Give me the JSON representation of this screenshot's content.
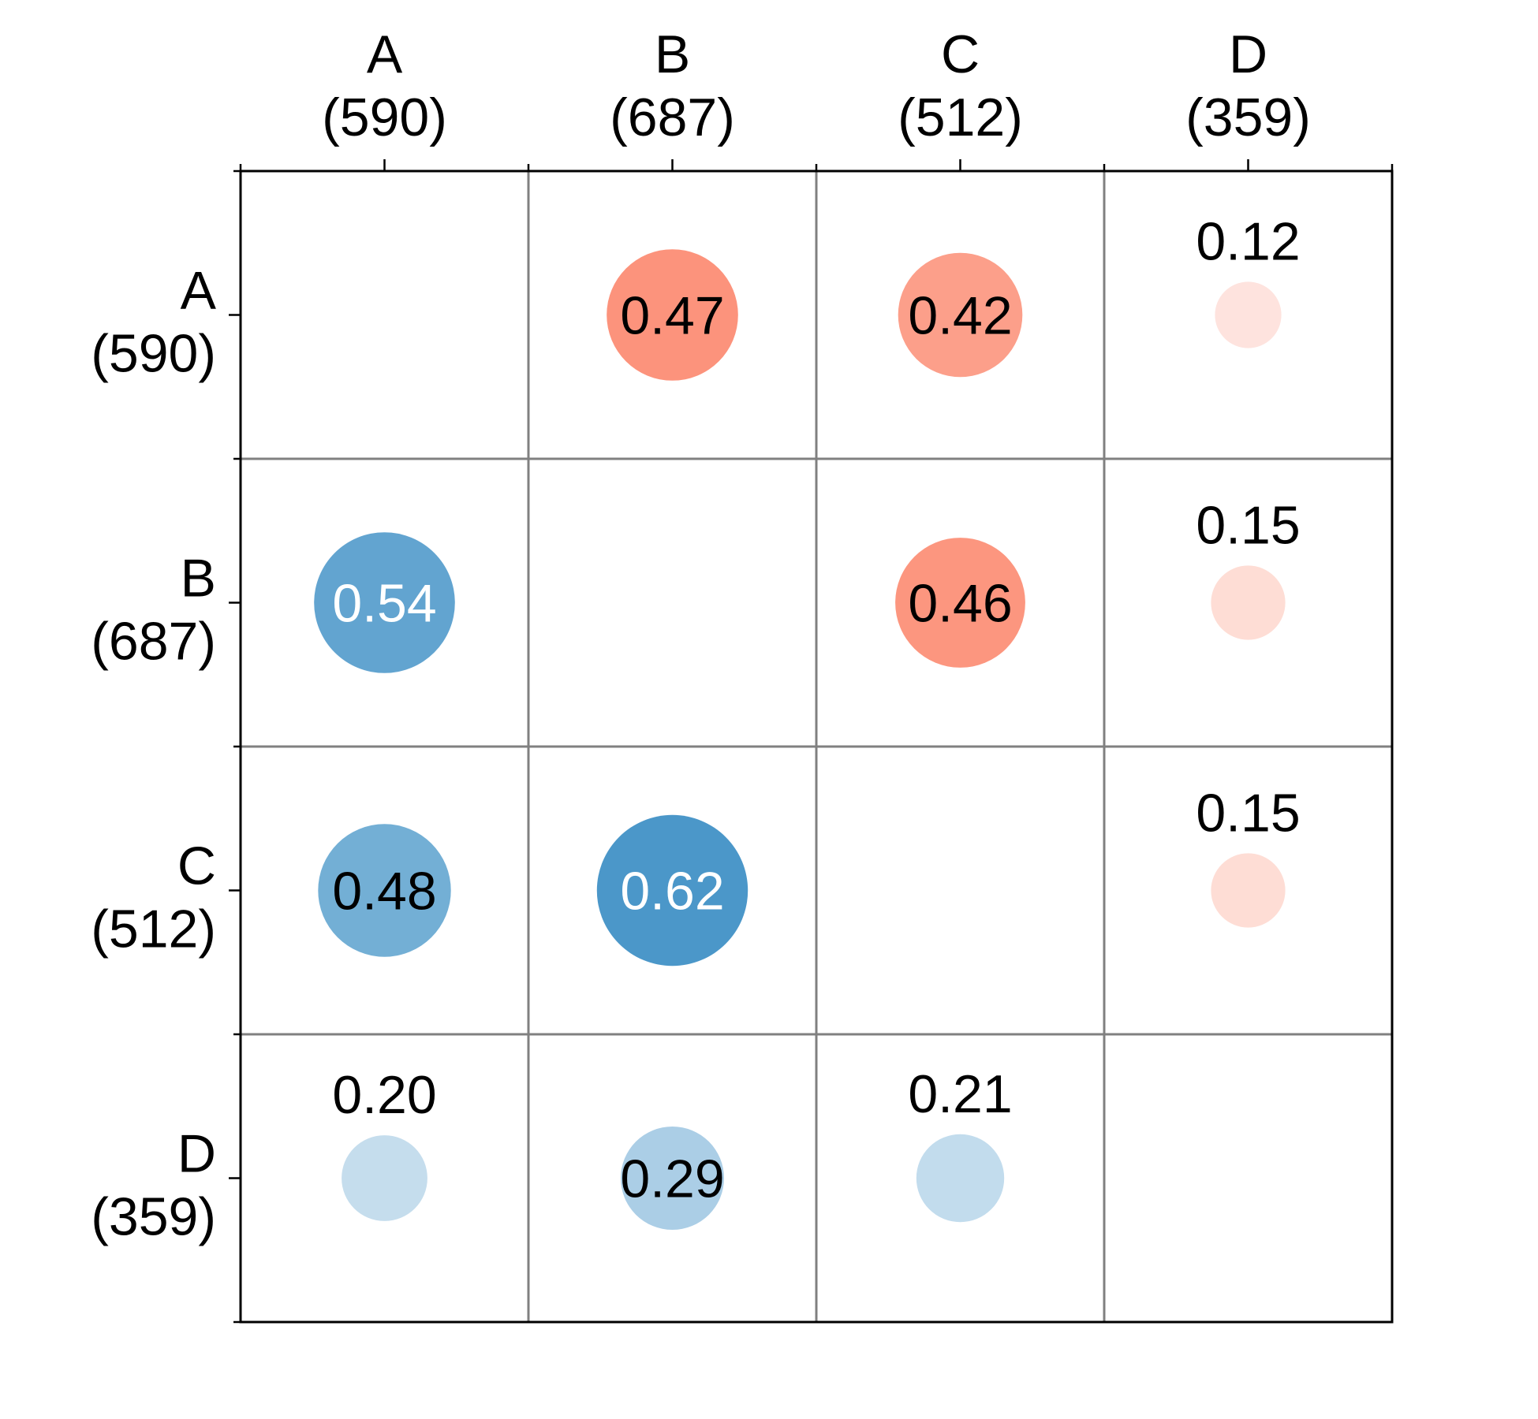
{
  "chart_data": {
    "type": "heatmap",
    "title": "",
    "xlabel": "",
    "ylabel": "",
    "grid": true,
    "categories": [
      "A",
      "B",
      "C",
      "D"
    ],
    "counts": [
      "(590)",
      "(687)",
      "(512)",
      "(359)"
    ],
    "rows": [
      [
        null,
        0.47,
        0.42,
        0.12
      ],
      [
        0.54,
        null,
        0.46,
        0.15
      ],
      [
        0.48,
        0.62,
        null,
        0.15
      ],
      [
        0.2,
        0.29,
        0.21,
        null
      ]
    ],
    "labels": [
      [
        "",
        "0.47",
        "0.42",
        "0.12"
      ],
      [
        "0.54",
        "",
        "0.46",
        "0.15"
      ],
      [
        "0.48",
        "0.62",
        "",
        "0.15"
      ],
      [
        "0.20",
        "0.29",
        "0.21",
        ""
      ]
    ],
    "colors": {
      "upper_triangle": "#fb6a4a",
      "lower_triangle": "#4292c6",
      "grid": "#808080",
      "frame": "#000000"
    }
  }
}
